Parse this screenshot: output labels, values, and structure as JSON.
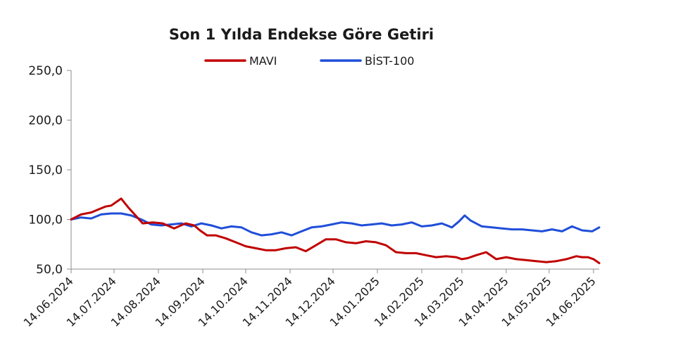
{
  "chart_data": {
    "type": "line",
    "title": "Son 1 Yılda Endekse Göre Getiri",
    "xlabel": "",
    "ylabel": "",
    "ylim": [
      50,
      250
    ],
    "yticks": [
      "50,0",
      "100,0",
      "150,0",
      "200,0",
      "250,0"
    ],
    "yticks_values": [
      50,
      100,
      150,
      200,
      250
    ],
    "x_start": "2024-06-14",
    "x_end": "2025-06-18",
    "xtick_labels": [
      "14.06.2024",
      "14.07.2024",
      "14.08.2024",
      "14.09.2024",
      "14.10.2024",
      "14.11.2024",
      "14.12.2024",
      "14.01.2025",
      "14.02.2025",
      "14.03.2025",
      "14.04.2025",
      "14.05.2025",
      "14.06.2025"
    ],
    "xtick_dates": [
      "2024-06-14",
      "2024-07-14",
      "2024-08-14",
      "2024-09-14",
      "2024-10-14",
      "2024-11-14",
      "2024-12-14",
      "2025-01-14",
      "2025-02-14",
      "2025-03-14",
      "2025-04-14",
      "2025-05-14",
      "2025-06-14"
    ],
    "legend_position": "top-center",
    "grid": false,
    "series": [
      {
        "name": "MAVI",
        "color": "#c00000",
        "x": [
          "2024-06-14",
          "2024-06-21",
          "2024-06-28",
          "2024-07-03",
          "2024-07-08",
          "2024-07-12",
          "2024-07-16",
          "2024-07-19",
          "2024-07-24",
          "2024-07-29",
          "2024-08-03",
          "2024-08-10",
          "2024-08-17",
          "2024-08-25",
          "2024-09-02",
          "2024-09-08",
          "2024-09-12",
          "2024-09-17",
          "2024-09-23",
          "2024-09-30",
          "2024-10-07",
          "2024-10-14",
          "2024-10-21",
          "2024-10-28",
          "2024-11-04",
          "2024-11-11",
          "2024-11-18",
          "2024-11-25",
          "2024-12-02",
          "2024-12-09",
          "2024-12-16",
          "2024-12-23",
          "2024-12-30",
          "2025-01-06",
          "2025-01-13",
          "2025-01-20",
          "2025-01-27",
          "2025-02-03",
          "2025-02-10",
          "2025-02-17",
          "2025-02-24",
          "2025-03-03",
          "2025-03-10",
          "2025-03-14",
          "2025-03-18",
          "2025-03-24",
          "2025-03-31",
          "2025-04-07",
          "2025-04-14",
          "2025-04-21",
          "2025-04-28",
          "2025-05-05",
          "2025-05-12",
          "2025-05-19",
          "2025-05-26",
          "2025-06-02",
          "2025-06-06",
          "2025-06-10",
          "2025-06-14",
          "2025-06-18"
        ],
        "y": [
          100,
          105,
          107,
          110,
          113,
          114,
          118,
          121,
          112,
          104,
          96,
          97,
          96,
          91,
          96,
          94,
          89,
          84,
          84,
          81,
          77,
          73,
          71,
          69,
          69,
          71,
          72,
          68,
          74,
          80,
          80,
          77,
          76,
          78,
          77,
          74,
          67,
          66,
          66,
          64,
          62,
          63,
          62,
          60,
          61,
          64,
          67,
          60,
          62,
          60,
          59,
          58,
          57,
          58,
          60,
          63,
          62,
          62,
          60,
          56
        ]
      },
      {
        "name": "BİST-100",
        "color": "#1f4ed8",
        "x": [
          "2024-06-14",
          "2024-06-21",
          "2024-06-28",
          "2024-07-05",
          "2024-07-12",
          "2024-07-19",
          "2024-07-26",
          "2024-08-02",
          "2024-08-09",
          "2024-08-16",
          "2024-08-23",
          "2024-08-30",
          "2024-09-06",
          "2024-09-13",
          "2024-09-20",
          "2024-09-27",
          "2024-10-04",
          "2024-10-11",
          "2024-10-18",
          "2024-10-25",
          "2024-11-01",
          "2024-11-08",
          "2024-11-15",
          "2024-11-22",
          "2024-11-29",
          "2024-12-06",
          "2024-12-13",
          "2024-12-20",
          "2024-12-27",
          "2025-01-03",
          "2025-01-10",
          "2025-01-17",
          "2025-01-24",
          "2025-01-31",
          "2025-02-07",
          "2025-02-14",
          "2025-02-21",
          "2025-02-28",
          "2025-03-07",
          "2025-03-12",
          "2025-03-16",
          "2025-03-20",
          "2025-03-28",
          "2025-04-04",
          "2025-04-11",
          "2025-04-18",
          "2025-04-25",
          "2025-05-02",
          "2025-05-09",
          "2025-05-16",
          "2025-05-23",
          "2025-05-30",
          "2025-06-06",
          "2025-06-13",
          "2025-06-18"
        ],
        "y": [
          100,
          102,
          101,
          105,
          106,
          106,
          104,
          100,
          95,
          94,
          95,
          96,
          93,
          96,
          94,
          91,
          93,
          92,
          87,
          84,
          85,
          87,
          84,
          88,
          92,
          93,
          95,
          97,
          96,
          94,
          95,
          96,
          94,
          95,
          97,
          93,
          94,
          96,
          92,
          98,
          104,
          99,
          93,
          92,
          91,
          90,
          90,
          89,
          88,
          90,
          88,
          93,
          89,
          88,
          92
        ]
      }
    ]
  }
}
